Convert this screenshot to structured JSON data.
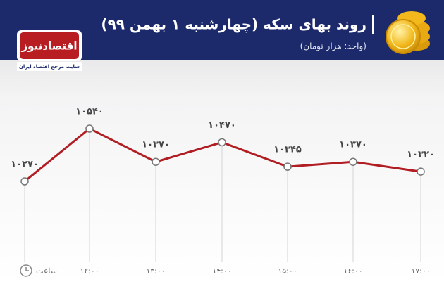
{
  "chart_data": {
    "type": "line",
    "title": "روند بهای سکه (چهارشنبه ۱ بهمن ۹۹)",
    "subtitle": "(واحد: هزار تومان)",
    "brand": "اقتصادنیوز",
    "brand_tagline": "سایت مرجع اقتصاد ایران",
    "x_label": "ساعت",
    "categories": [
      null,
      "۱۲:۰۰",
      "۱۳:۰۰",
      "۱۴:۰۰",
      "۱۵:۰۰",
      "۱۶:۰۰",
      "۱۷:۰۰"
    ],
    "series": [
      {
        "name": "سکه",
        "color": "#b01e23",
        "values": [
          10270,
          10540,
          10370,
          10470,
          10345,
          10370,
          10320
        ],
        "value_labels": [
          "۱۰۲۷۰",
          "۱۰۵۴۰",
          "۱۰۳۷۰",
          "۱۰۴۷۰",
          "۱۰۳۴۵",
          "۱۰۳۷۰",
          "۱۰۳۲۰"
        ]
      }
    ]
  }
}
